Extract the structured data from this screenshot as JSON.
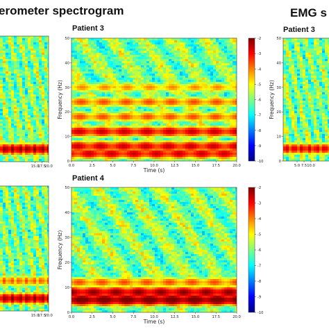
{
  "headers": {
    "left": "erometer spectrogram",
    "right": "EMG s"
  },
  "chart_data": [
    {
      "type": "heatmap",
      "panel": "top-left (cropped)",
      "title": "",
      "xlabel": "",
      "ylabel": "",
      "xlim": [
        0,
        20
      ],
      "ylim": [
        0,
        50
      ],
      "x_ticks": [
        "15.0",
        "17.5",
        "20.0"
      ],
      "y_ticks": [],
      "bands_hz": [
        {
          "freq": 5,
          "level": -2.5
        }
      ],
      "background_level": -6
    },
    {
      "type": "heatmap",
      "panel": "Accelerometer Patient 3",
      "title": "Patient 3",
      "xlabel": "Time (s)",
      "ylabel": "Frequency (Hz)",
      "xlim": [
        0,
        20
      ],
      "ylim": [
        0,
        50
      ],
      "x_ticks": [
        "0.0",
        "2.5",
        "5.0",
        "7.5",
        "10.0",
        "12.5",
        "15.0",
        "17.5",
        "20.0"
      ],
      "y_ticks": [
        "0",
        "10",
        "20",
        "30",
        "40",
        "50"
      ],
      "bands_hz": [
        {
          "freq": 3,
          "level": -3
        },
        {
          "freq": 6,
          "level": -3
        },
        {
          "freq": 12,
          "level": -3
        },
        {
          "freq": 18,
          "level": -4
        },
        {
          "freq": 24,
          "level": -4
        },
        {
          "freq": 30,
          "level": -4.5
        }
      ],
      "background_level": -6,
      "colorbar": {
        "min": -10,
        "max": -2,
        "ticks": [
          "-2",
          "-3",
          "-4",
          "-5",
          "-6",
          "-7",
          "-8",
          "-9",
          "-10"
        ]
      }
    },
    {
      "type": "heatmap",
      "panel": "EMG Patient 3 (cropped)",
      "title": "Patient 3",
      "xlabel": "",
      "ylabel": "Frequency (Hz)",
      "xlim": [
        0,
        20
      ],
      "ylim": [
        0,
        50
      ],
      "x_ticks": [
        "5.0",
        "7.5",
        "10.0"
      ],
      "y_ticks": [
        "0",
        "10",
        "20",
        "30",
        "40",
        "50"
      ],
      "bands_hz": [
        {
          "freq": 5,
          "level": -3
        }
      ],
      "background_level": -6
    },
    {
      "type": "heatmap",
      "panel": "bottom-left (cropped)",
      "title": "",
      "xlabel": "",
      "ylabel": "",
      "xlim": [
        0,
        20
      ],
      "ylim": [
        0,
        50
      ],
      "x_ticks": [
        "15.0",
        "17.5",
        "20.0"
      ],
      "y_ticks": [],
      "bands_hz": [
        {
          "freq": 5,
          "level": -2.5
        },
        {
          "freq": 12,
          "level": -4
        }
      ],
      "background_level": -6
    },
    {
      "type": "heatmap",
      "panel": "Accelerometer Patient 4",
      "title": "Patient 4",
      "xlabel": "Time (s)",
      "ylabel": "Frequency (Hz)",
      "xlim": [
        0,
        20
      ],
      "ylim": [
        0,
        50
      ],
      "x_ticks": [
        "0.0",
        "2.5",
        "5.0",
        "7.5",
        "10.0",
        "12.5",
        "15.0",
        "17.5",
        "20.0"
      ],
      "y_ticks": [
        "0",
        "10",
        "20",
        "30",
        "40",
        "50"
      ],
      "bands_hz": [
        {
          "freq": 5,
          "level": -2
        },
        {
          "freq": 8,
          "level": -2.5
        },
        {
          "freq": 12,
          "level": -4
        }
      ],
      "background_level": -6,
      "colorbar": {
        "min": -10,
        "max": -2,
        "ticks": [
          "-2",
          "-3",
          "-4",
          "-5",
          "-6",
          "-7",
          "-8",
          "-9",
          "-10"
        ]
      }
    }
  ]
}
